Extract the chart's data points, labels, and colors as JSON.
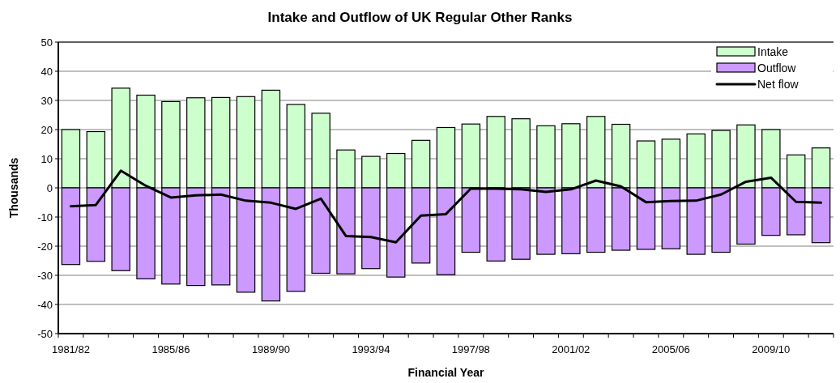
{
  "chart_data": {
    "type": "bar",
    "title": "Intake and Outflow of UK Regular Other Ranks",
    "xlabel": "Financial Year",
    "ylabel": "Thousands",
    "categories": [
      "1981/82",
      null,
      null,
      null,
      "1985/86",
      null,
      null,
      null,
      "1989/90",
      null,
      null,
      null,
      "1993/94",
      null,
      null,
      null,
      "1997/98",
      null,
      null,
      null,
      "2001/02",
      null,
      null,
      null,
      "2005/06",
      null,
      null,
      null,
      "2009/10",
      null,
      null
    ],
    "stacked": true,
    "series": [
      {
        "name": "Intake",
        "color": "#ccffcc",
        "values": [
          20.0,
          19.3,
          34.2,
          31.8,
          29.6,
          30.9,
          31.0,
          31.3,
          33.5,
          28.6,
          25.6,
          13.0,
          10.8,
          11.8,
          16.3,
          20.7,
          21.9,
          24.5,
          23.7,
          21.3,
          22.0,
          24.5,
          21.8,
          16.1,
          16.7,
          18.5,
          19.7,
          21.6,
          20.0,
          11.3,
          13.7
        ]
      },
      {
        "name": "Outflow",
        "color": "#cc99ff",
        "values": [
          -26.3,
          -25.2,
          -28.4,
          -31.2,
          -33.0,
          -33.5,
          -33.3,
          -35.8,
          -38.8,
          -35.5,
          -29.3,
          -29.5,
          -27.7,
          -30.6,
          -25.8,
          -29.8,
          -22.1,
          -25.1,
          -24.5,
          -22.8,
          -22.6,
          -22.1,
          -21.4,
          -21.1,
          -20.9,
          -22.8,
          -22.1,
          -19.3,
          -16.3,
          -16.1,
          -18.8
        ]
      },
      {
        "name": "Net flow",
        "type": "line",
        "color": "#000000",
        "values": [
          -6.3,
          -5.9,
          5.9,
          0.7,
          -3.3,
          -2.6,
          -2.3,
          -4.4,
          -5.1,
          -7.2,
          -3.7,
          -16.5,
          -16.9,
          -18.7,
          -9.5,
          -9.0,
          -0.2,
          -0.3,
          -0.5,
          -1.4,
          -0.5,
          2.5,
          0.5,
          -4.9,
          -4.5,
          -4.4,
          -2.3,
          2.1,
          3.5,
          -4.8,
          -5.1
        ]
      }
    ],
    "ylim": [
      -50,
      50
    ],
    "yticks": [
      -50,
      -40,
      -30,
      -20,
      -10,
      0,
      10,
      20,
      30,
      40,
      50
    ],
    "grid": "y",
    "legend": "top right"
  }
}
